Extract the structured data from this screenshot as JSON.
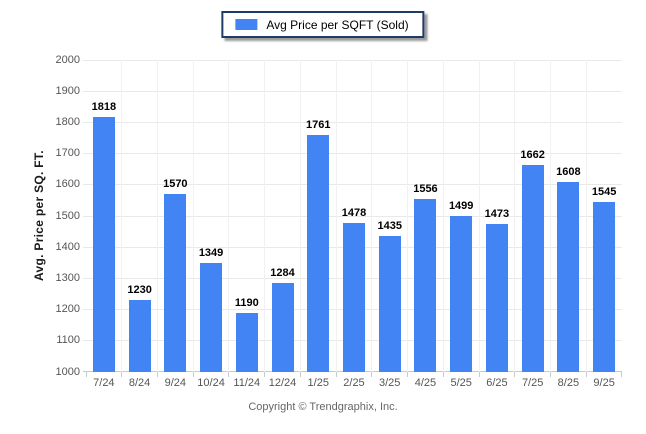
{
  "legend": {
    "label": "Avg Price per SQFT (Sold)",
    "swatch_icon": "blue-square-swatch",
    "swatch_color": "#4284f4"
  },
  "chart_data": {
    "type": "bar",
    "title": "",
    "series_name": "Avg Price per SQFT (Sold)",
    "categories": [
      "7/24",
      "8/24",
      "9/24",
      "10/24",
      "11/24",
      "12/24",
      "1/25",
      "2/25",
      "3/25",
      "4/25",
      "5/25",
      "6/25",
      "7/25",
      "8/25",
      "9/25"
    ],
    "values": [
      1818,
      1230,
      1570,
      1349,
      1190,
      1284,
      1761,
      1478,
      1435,
      1556,
      1499,
      1473,
      1662,
      1608,
      1545
    ],
    "xlabel": "",
    "ylabel": "Avg. Price per SQ. FT.",
    "ylim": [
      1000,
      2000
    ],
    "ytick_step": 100,
    "grid": true,
    "legend_position": "top-center",
    "bar_color": "#4284f4",
    "data_labels": true
  },
  "footer": {
    "copyright": "Copyright © Trendgraphix, Inc."
  },
  "colors": {
    "bar": "#4284f4",
    "legend_border": "#1f3c67",
    "gridline": "#e9e9e9",
    "axis_line": "#c9c9c9",
    "tick_label": "#555555",
    "value_label": "#000000",
    "footer_text": "#666666",
    "background": "#ffffff"
  }
}
